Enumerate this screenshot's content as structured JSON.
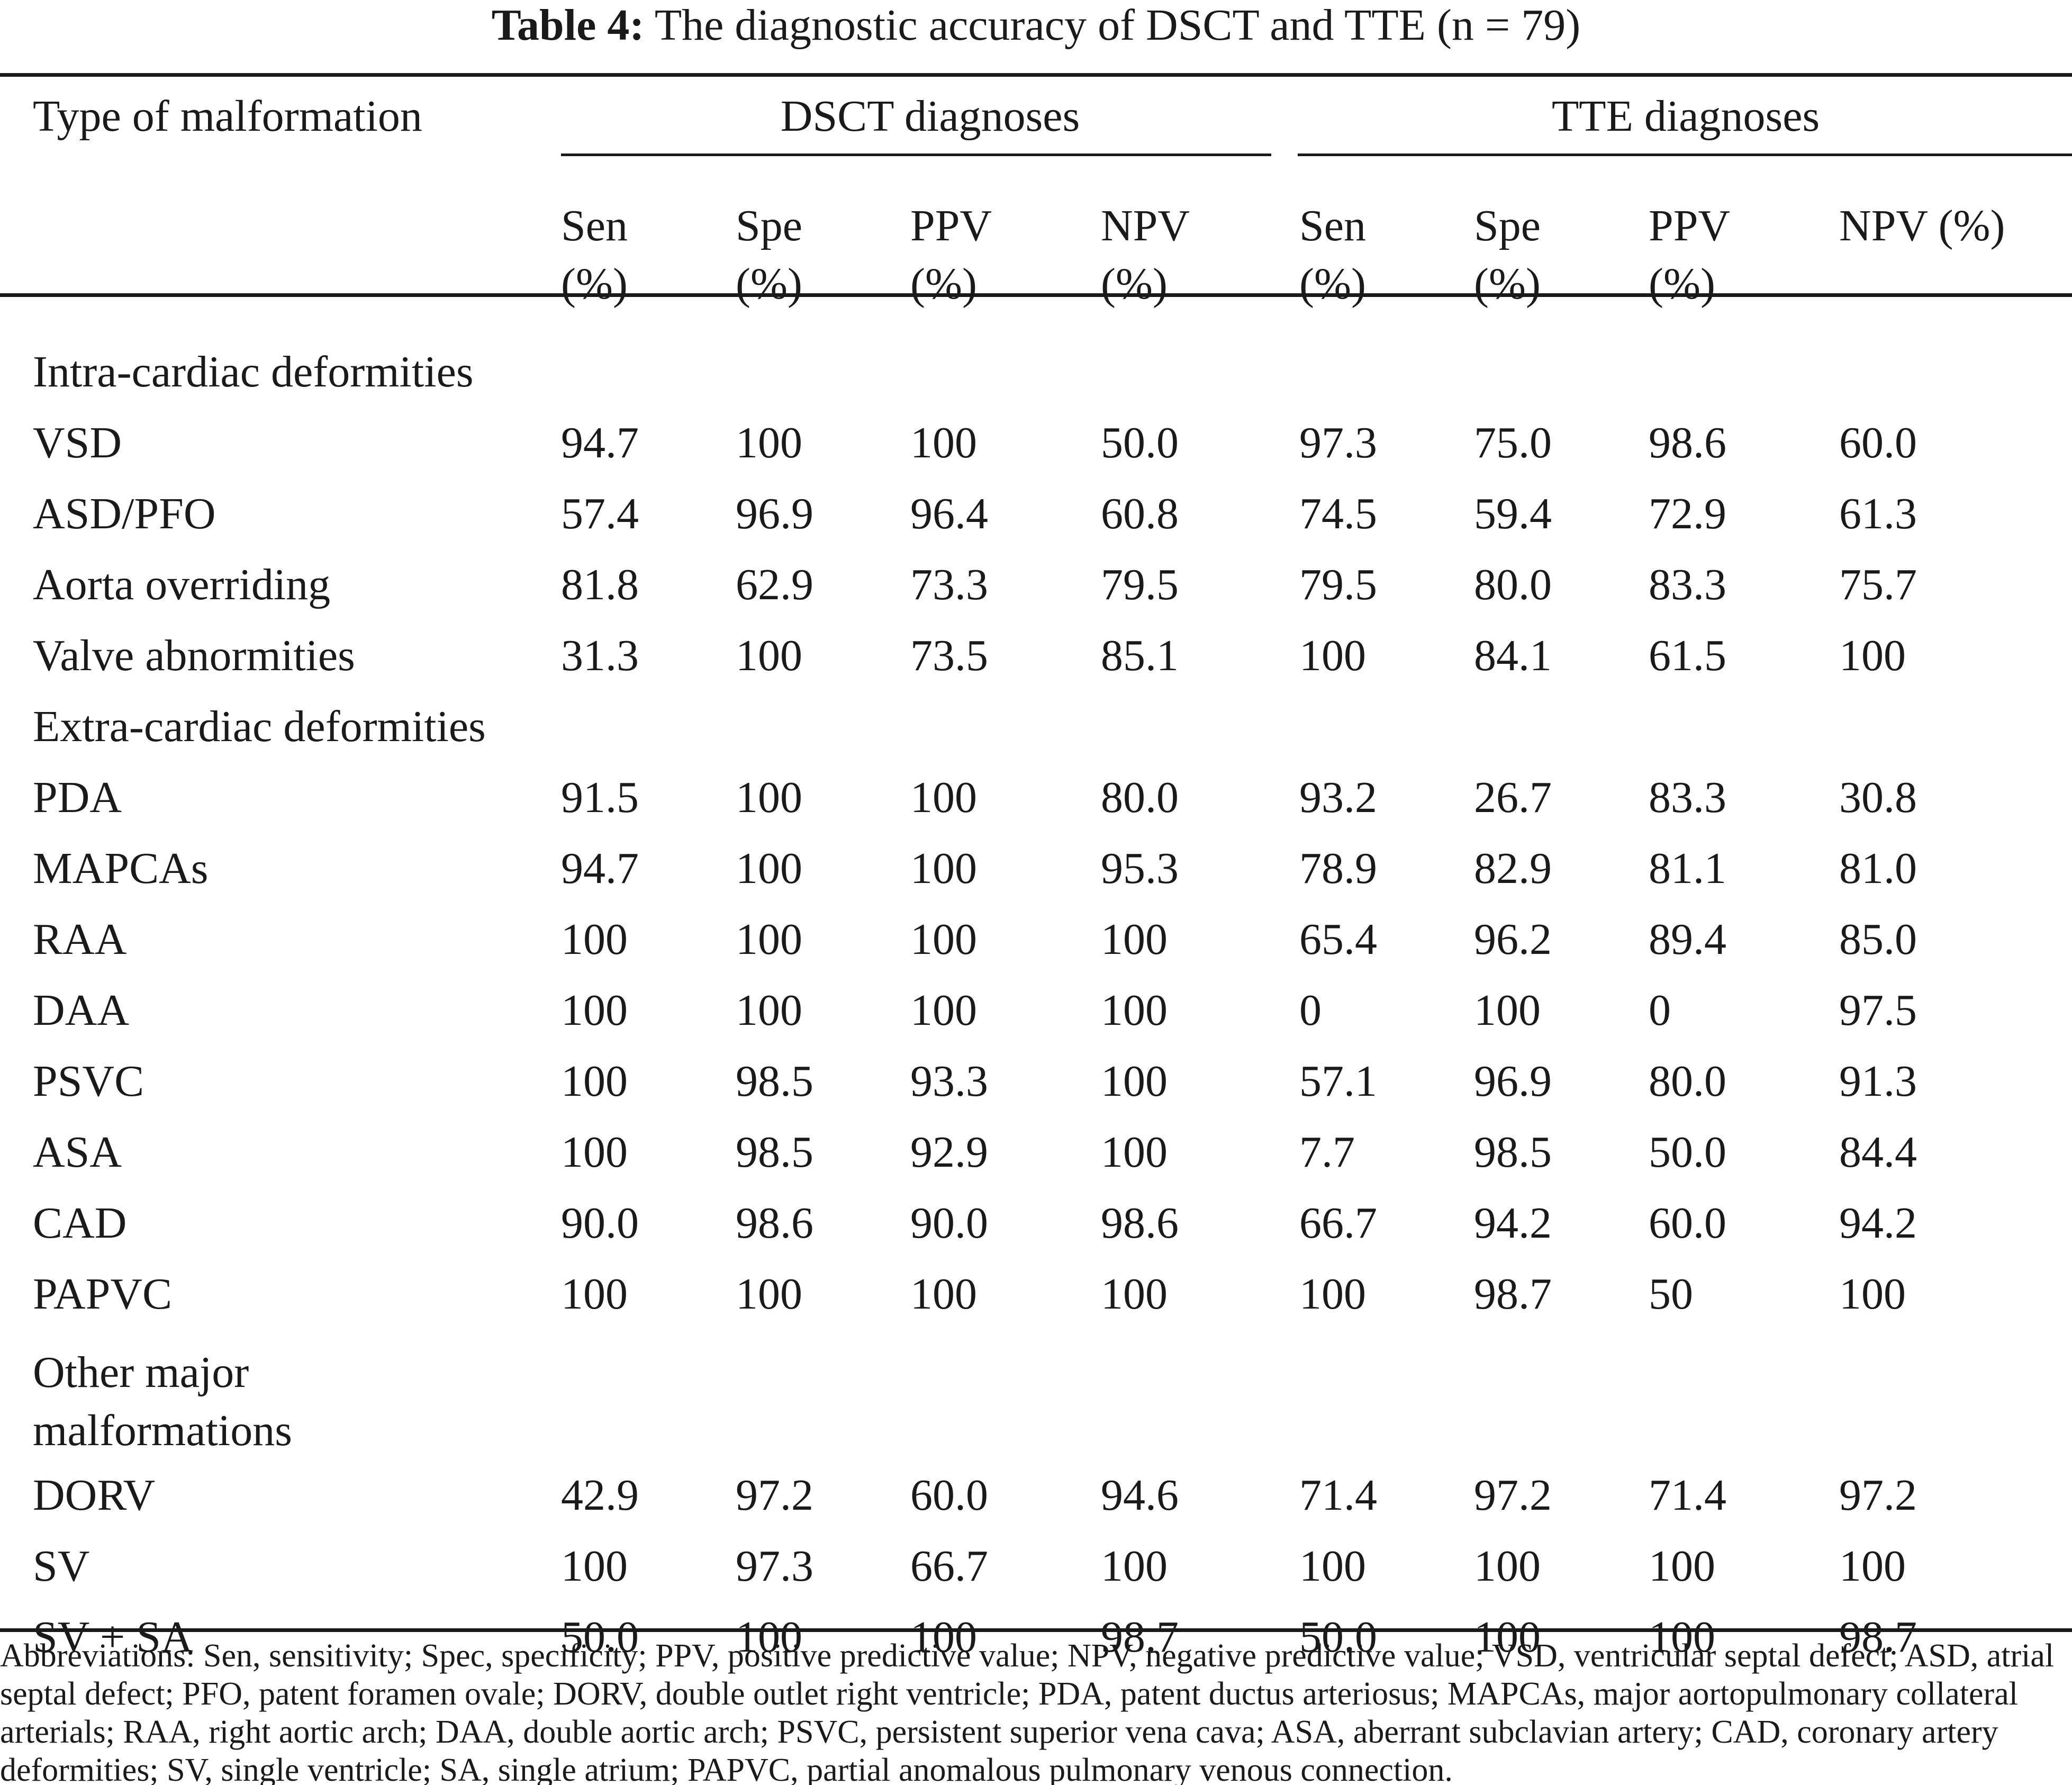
{
  "caption": {
    "label": "Table 4:",
    "text": "The diagnostic accuracy of DSCT and TTE (n = 79)"
  },
  "header": {
    "type_col": "Type of malformation",
    "dsct_group": "DSCT diagnoses",
    "tte_group": "TTE diagnoses",
    "subcols": [
      {
        "l1": "Sen",
        "l2": "(%)"
      },
      {
        "l1": "Spe",
        "l2": "(%)"
      },
      {
        "l1": "PPV",
        "l2": "(%)"
      },
      {
        "l1": "NPV",
        "l2": "(%)"
      },
      {
        "l1": "Sen",
        "l2": "(%)"
      },
      {
        "l1": "Spe",
        "l2": "(%)"
      },
      {
        "l1": "PPV",
        "l2": "(%)"
      },
      {
        "l1": "NPV (%)",
        "l2": ""
      }
    ]
  },
  "sections": [
    {
      "title": "Intra-cardiac deformities",
      "rows": [
        {
          "name": "VSD",
          "v": [
            "94.7",
            "100",
            "100",
            "50.0",
            "97.3",
            "75.0",
            "98.6",
            "60.0"
          ]
        },
        {
          "name": "ASD/PFO",
          "v": [
            "57.4",
            "96.9",
            "96.4",
            "60.8",
            "74.5",
            "59.4",
            "72.9",
            "61.3"
          ]
        },
        {
          "name": "Aorta overriding",
          "v": [
            "81.8",
            "62.9",
            "73.3",
            "79.5",
            "79.5",
            "80.0",
            "83.3",
            "75.7"
          ]
        },
        {
          "name": "Valve abnormities",
          "v": [
            "31.3",
            "100",
            "73.5",
            "85.1",
            "100",
            "84.1",
            "61.5",
            "100"
          ]
        }
      ]
    },
    {
      "title": "Extra-cardiac deformities",
      "rows": [
        {
          "name": "PDA",
          "v": [
            "91.5",
            "100",
            "100",
            "80.0",
            "93.2",
            "26.7",
            "83.3",
            "30.8"
          ]
        },
        {
          "name": "MAPCAs",
          "v": [
            "94.7",
            "100",
            "100",
            "95.3",
            "78.9",
            "82.9",
            "81.1",
            "81.0"
          ]
        },
        {
          "name": "RAA",
          "v": [
            "100",
            "100",
            "100",
            "100",
            "65.4",
            "96.2",
            "89.4",
            "85.0"
          ]
        },
        {
          "name": "DAA",
          "v": [
            "100",
            "100",
            "100",
            "100",
            "0",
            "100",
            "0",
            "97.5"
          ]
        },
        {
          "name": "PSVC",
          "v": [
            "100",
            "98.5",
            "93.3",
            "100",
            "57.1",
            "96.9",
            "80.0",
            "91.3"
          ]
        },
        {
          "name": "ASA",
          "v": [
            "100",
            "98.5",
            "92.9",
            "100",
            "7.7",
            "98.5",
            "50.0",
            "84.4"
          ]
        },
        {
          "name": "CAD",
          "v": [
            "90.0",
            "98.6",
            "90.0",
            "98.6",
            "66.7",
            "94.2",
            "60.0",
            "94.2"
          ]
        },
        {
          "name": "PAPVC",
          "v": [
            "100",
            "100",
            "100",
            "100",
            "100",
            "98.7",
            "50",
            "100"
          ]
        }
      ]
    },
    {
      "title_l1": "Other major",
      "title_l2": "malformations",
      "rows": [
        {
          "name": "DORV",
          "v": [
            "42.9",
            "97.2",
            "60.0",
            "94.6",
            "71.4",
            "97.2",
            "71.4",
            "97.2"
          ]
        },
        {
          "name": "SV",
          "v": [
            "100",
            "97.3",
            "66.7",
            "100",
            "100",
            "100",
            "100",
            "100"
          ]
        },
        {
          "name": "SV + SA",
          "v": [
            "50.0",
            "100",
            "100",
            "98.7",
            "50.0",
            "100",
            "100",
            "98.7"
          ]
        }
      ]
    }
  ],
  "footnote": "Abbreviations: Sen, sensitivity; Spec, specificity; PPV, positive predictive value; NPV, negative predictive value; VSD, ventricular septal defect; ASD, atrial septal defect; PFO, patent foramen ovale; DORV, double outlet right ventricle; PDA, patent ductus arteriosus; MAPCAs, major aortopulmonary collateral arterials; RAA, right aortic arch; DAA, double aortic arch; PSVC, persistent superior vena cava; ASA, aberrant subclavian artery; CAD, coronary artery deformities; SV, single ventricle; SA, single atrium; PAPVC, partial anomalous pulmonary venous connection."
}
